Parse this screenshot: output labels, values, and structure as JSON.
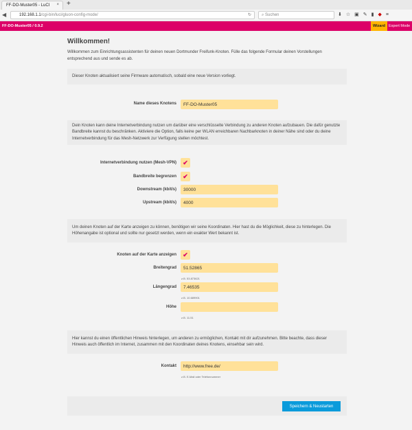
{
  "browser": {
    "tab_title": "FF-DO-Muster05 - LuCI",
    "tab_close": "×",
    "new_tab": "+",
    "url_host": "192.168.1.1",
    "url_path": "/cgi-bin/luci/gluon-config-mode/",
    "search_placeholder": "Suchen"
  },
  "header": {
    "brand": "FF-DO-Muster05 / 0.9.2",
    "wizard": "Wizard",
    "expert": "Expert Mode",
    "accent": "#dc0067",
    "active": "#ffb400"
  },
  "page": {
    "title": "Willkommen!",
    "intro": "Willkommen zum Einrichtungsassistenten für deinen neuen Dortmunder Freifunk-Knoten. Fülle das folgende Formular deinen Vorstellungen entsprechend aus und sende es ab.",
    "autoupdate_note": "Dieser Knoten aktualisiert seine Firmware automatisch, sobald eine neue Version vorliegt.",
    "name_label": "Name dieses Knotens",
    "name_value": "FF-DO-Muster05",
    "mesh_note": "Dein Knoten kann deine Internetverbindung nutzen um darüber eine verschlüsselte Verbindung zu anderen Knoten aufzubauen. Die dafür genutzte Bandbreite kannst du beschränken. Aktiviere die Option, falls keine per WLAN erreichbaren Nachbarknoten in deiner Nähe sind oder du deine Internetverbindung für das Mesh-Netzwerk zur Verfügung stellen möchtest.",
    "meshvpn_label": "Internetverbindung nutzen (Mesh-VPN)",
    "meshvpn_checked": true,
    "limit_label": "Bandbreite begrenzen",
    "limit_checked": true,
    "down_label": "Downstream (kbit/s)",
    "down_value": "30000",
    "up_label": "Upstream (kbit/s)",
    "up_value": "4000",
    "geo_note": "Um deinen Knoten auf der Karte anzeigen zu können, benötigen wir seine Koordinaten. Hier hast du die Möglichkeit, diese zu hinterlegen. Die Höhenangabe ist optional und sollte nur gesetzt werden, wenn ein exakter Wert bekannt ist.",
    "map_label": "Knoten auf der Karte anzeigen",
    "map_checked": true,
    "lat_label": "Breitengrad",
    "lat_value": "51.52865",
    "lat_hint": "z.B. 53.873621",
    "lon_label": "Längengrad",
    "lon_value": "7.46535",
    "lon_hint": "z.B. 10.689901",
    "alt_label": "Höhe",
    "alt_value": "",
    "alt_hint": "z.B. 11.51",
    "contact_note": "Hier kannst du einen öffentlichen Hinweis hinterlegen, um anderen zu ermöglichen, Kontakt mit dir aufzunehmen. Bitte beachte, dass dieser Hinweis auch öffentlich im Internet, zusammen mit den Koordinaten deines Knotens, einsehbar sein wird.",
    "contact_label": "Kontakt",
    "contact_value": "http://www.free.de/",
    "contact_hint": "z.B. E-Mail oder Telefonnummer",
    "submit": "Speichern & Neustarten"
  }
}
